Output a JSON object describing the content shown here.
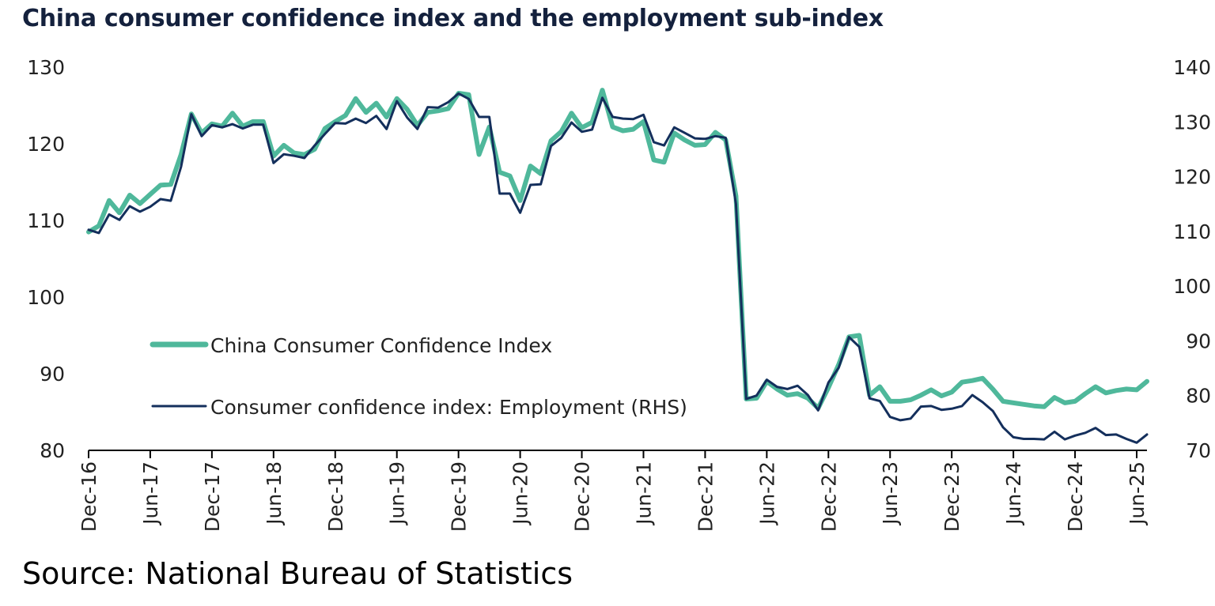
{
  "title": "China consumer confidence index and the employment sub-index",
  "source": "Source: National Bureau of Statistics",
  "chart_data": {
    "type": "line",
    "title": "China consumer confidence index and the employment sub-index",
    "x_start": "Dec-16",
    "x_tick_labels": [
      "Dec-16",
      "Jun-17",
      "Dec-17",
      "Jun-18",
      "Dec-18",
      "Jun-19",
      "Dec-19",
      "Jun-20",
      "Dec-20",
      "Jun-21",
      "Dec-21",
      "Jun-22",
      "Dec-22",
      "Jun-23",
      "Dec-23",
      "Jun-24",
      "Dec-24",
      "Jun-25"
    ],
    "y_left": {
      "min": 80,
      "max": 130,
      "ticks": [
        80,
        90,
        100,
        110,
        120,
        130
      ]
    },
    "y_right": {
      "min": 70,
      "max": 140,
      "ticks": [
        70,
        80,
        90,
        100,
        110,
        120,
        130,
        140
      ]
    },
    "legend_position": "center-left",
    "series": [
      {
        "name": "China Consumer Confidence Index",
        "axis": "left",
        "color": "#4fb89b",
        "values": [
          108.5,
          109.3,
          112.6,
          111.0,
          113.3,
          112.2,
          113.4,
          114.6,
          114.7,
          118.6,
          123.9,
          121.4,
          122.6,
          122.3,
          124.0,
          122.3,
          122.9,
          122.9,
          118.4,
          119.8,
          118.8,
          118.6,
          119.3,
          122.0,
          122.9,
          123.7,
          125.9,
          124.1,
          125.3,
          123.5,
          125.9,
          124.5,
          122.4,
          124.1,
          124.3,
          124.6,
          126.6,
          126.4,
          118.6,
          122.2,
          116.3,
          115.8,
          112.6,
          117.1,
          116.1,
          120.4,
          121.6,
          124.0,
          122.1,
          122.8,
          127.0,
          122.2,
          121.7,
          121.9,
          122.9,
          117.9,
          117.6,
          121.4,
          120.5,
          119.8,
          119.9,
          121.5,
          120.5,
          113.2,
          86.7,
          86.8,
          89.0,
          88.0,
          87.2,
          87.4,
          86.8,
          85.5,
          88.2,
          91.2,
          94.8,
          95.0,
          87.2,
          88.3,
          86.4,
          86.4,
          86.6,
          87.2,
          87.9,
          87.1,
          87.6,
          88.9,
          89.1,
          89.4,
          88.0,
          86.4,
          86.2,
          86.0,
          85.8,
          85.7,
          86.9,
          86.2,
          86.4,
          87.4,
          88.3,
          87.5,
          87.8,
          88.0,
          87.9,
          89.0
        ]
      },
      {
        "name": "Consumer confidence index: Employment (RHS)",
        "axis": "right",
        "color": "#142f5c",
        "values": [
          110.3,
          109.7,
          113.1,
          112.1,
          114.6,
          113.6,
          114.5,
          115.9,
          115.6,
          121.8,
          131.4,
          127.4,
          129.4,
          129.0,
          129.6,
          128.8,
          129.5,
          129.5,
          122.5,
          124.1,
          123.8,
          123.4,
          125.7,
          127.8,
          129.8,
          129.7,
          130.6,
          129.8,
          131.1,
          128.7,
          133.8,
          130.8,
          128.7,
          132.7,
          132.6,
          133.6,
          135.2,
          134.2,
          130.9,
          130.9,
          116.9,
          116.9,
          113.4,
          118.5,
          118.6,
          125.6,
          127.1,
          129.9,
          128.2,
          128.6,
          134.4,
          130.9,
          130.6,
          130.5,
          131.3,
          126.3,
          125.7,
          129.0,
          128.0,
          127.0,
          126.9,
          127.4,
          127.1,
          115.0,
          79.4,
          80.0,
          82.9,
          81.6,
          81.2,
          81.8,
          80.1,
          77.3,
          82.4,
          85.1,
          90.7,
          88.9,
          79.5,
          79.0,
          76.1,
          75.5,
          75.8,
          78.0,
          78.1,
          77.4,
          77.6,
          78.1,
          80.1,
          78.8,
          77.2,
          74.2,
          72.4,
          72.1,
          72.1,
          72.0,
          73.4,
          72.0,
          72.7,
          73.2,
          74.1,
          72.8,
          72.9,
          72.1,
          71.4,
          72.9
        ]
      }
    ]
  }
}
